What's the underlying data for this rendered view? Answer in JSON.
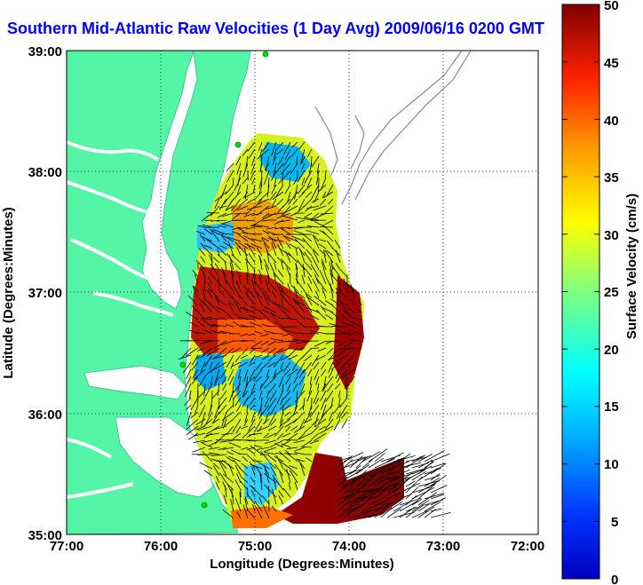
{
  "title": "Southern Mid-Atlantic Raw Velocities (1 Day Avg) 2009/06/16 0200 GMT",
  "x_axis": {
    "label": "Longitude (Degrees:Minutes)",
    "ticks": [
      "77:00",
      "76:00",
      "75:00",
      "74:00",
      "73:00",
      "72:00"
    ]
  },
  "y_axis": {
    "label": "Latitude (Degrees:Minutes)",
    "ticks": [
      "39:00",
      "38:00",
      "37:00",
      "36:00",
      "35:00"
    ]
  },
  "colorbar": {
    "label": "Surface Velocity (cm/s)",
    "ticks": [
      "50",
      "45",
      "40",
      "35",
      "30",
      "25",
      "20",
      "15",
      "10",
      "5",
      "0"
    ],
    "range_cm_s": [
      0,
      50
    ],
    "colormap": "jet"
  },
  "map": {
    "lon_range": [
      -77,
      -72
    ],
    "lat_range": [
      35,
      39
    ],
    "grid": "dotted",
    "land_color": "#55f5a8",
    "water_color": "#ffffff",
    "bathymetry_color": "#888888",
    "station_color": "#00dd00",
    "vector_color": "#000000"
  }
}
